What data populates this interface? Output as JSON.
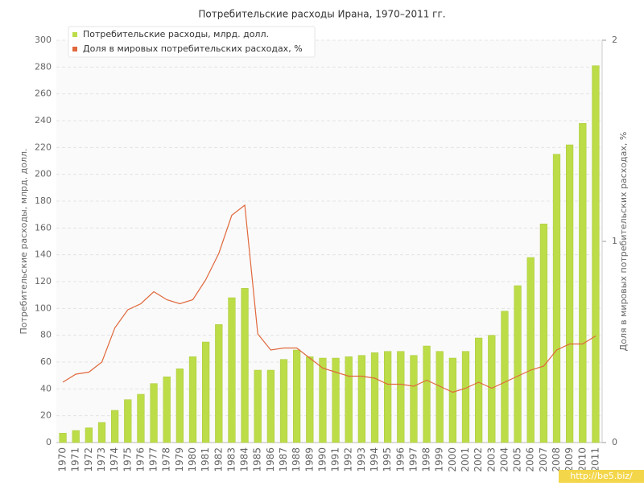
{
  "chart_data": {
    "type": "bar-line",
    "title": "Потребительские расходы Ирана, 1970–2011 гг.",
    "y_label": "Потребительские расходы, млрд. долл.",
    "y2_label": "Доля в мировых потребительских расходах, %",
    "watermark": "http://be5.biz/",
    "categories": [
      "1970",
      "1971",
      "1972",
      "1973",
      "1974",
      "1975",
      "1976",
      "1977",
      "1978",
      "1979",
      "1980",
      "1981",
      "1982",
      "1983",
      "1984",
      "1985",
      "1986",
      "1987",
      "1988",
      "1989",
      "1990",
      "1991",
      "1992",
      "1993",
      "1994",
      "1995",
      "1996",
      "1997",
      "1998",
      "1999",
      "2000",
      "2001",
      "2002",
      "2003",
      "2004",
      "2005",
      "2006",
      "2007",
      "2008",
      "2009",
      "2010",
      "2011"
    ],
    "series": [
      {
        "name": "Потребительские расходы, млрд. долл.",
        "type": "bar",
        "color": "#bcdc48",
        "values": [
          7,
          9,
          11,
          15,
          24,
          32,
          36,
          44,
          49,
          55,
          64,
          75,
          88,
          108,
          115,
          54,
          54,
          62,
          69,
          64,
          63,
          63,
          64,
          65,
          67,
          68,
          68,
          65,
          72,
          68,
          63,
          68,
          78,
          80,
          98,
          117,
          138,
          163,
          215,
          222,
          238,
          281
        ]
      },
      {
        "name": "Доля в мировых потребительских расходах, %",
        "type": "line",
        "color": "#e0683c",
        "axis": "y2",
        "values": [
          0.3,
          0.34,
          0.35,
          0.4,
          0.57,
          0.66,
          0.69,
          0.75,
          0.71,
          0.69,
          0.71,
          0.81,
          0.94,
          1.13,
          1.18,
          0.54,
          0.46,
          0.47,
          0.47,
          0.42,
          0.37,
          0.35,
          0.33,
          0.33,
          0.32,
          0.29,
          0.29,
          0.28,
          0.31,
          0.28,
          0.25,
          0.27,
          0.3,
          0.27,
          0.3,
          0.33,
          0.36,
          0.38,
          0.46,
          0.49,
          0.49,
          0.53
        ]
      }
    ],
    "ylim": [
      0,
      300
    ],
    "yticks": [
      0,
      20,
      40,
      60,
      80,
      100,
      120,
      140,
      160,
      180,
      200,
      220,
      240,
      260,
      280,
      300
    ],
    "y2lim": [
      0,
      2
    ],
    "y2ticks": [
      0,
      1,
      2
    ],
    "grid": true,
    "legend": "top-left"
  }
}
